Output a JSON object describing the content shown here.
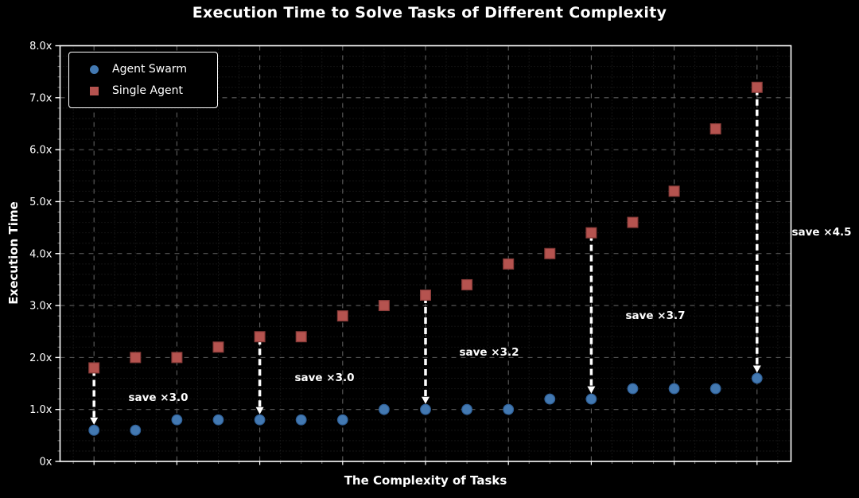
{
  "chart_data": {
    "type": "scatter",
    "title": "Execution Time to Solve Tasks of Different Complexity",
    "xlabel": "The Complexity of Tasks",
    "ylabel": "Execution Time",
    "ylim": [
      0,
      8
    ],
    "yticks": {
      "values": [
        0,
        1,
        2,
        3,
        4,
        5,
        6,
        7,
        8
      ],
      "labels": [
        "0x",
        "1.0x",
        "2.0x",
        "3.0x",
        "4.0x",
        "5.0x",
        "6.0x",
        "7.0x",
        "8.0x"
      ]
    },
    "x_point_count": 17,
    "grid": {
      "major_color": "#5f5f5f",
      "minor_color": "#262626"
    },
    "legend_position": "upper-left",
    "series": [
      {
        "name": "Agent Swarm",
        "marker": "circle",
        "color": "#4379b2",
        "edge_color": "#2f5f96",
        "values": [
          0.6,
          0.6,
          0.8,
          0.8,
          0.8,
          0.8,
          0.8,
          1.0,
          1.0,
          1.0,
          1.0,
          1.2,
          1.2,
          1.4,
          1.4,
          1.4,
          1.6
        ]
      },
      {
        "name": "Single Agent",
        "marker": "square",
        "color": "#b5534f",
        "edge_color": "#8a3c3a",
        "values": [
          1.8,
          2.0,
          2.0,
          2.2,
          2.4,
          2.4,
          2.8,
          3.0,
          3.2,
          3.4,
          3.8,
          4.0,
          4.4,
          4.6,
          5.2,
          6.4,
          7.2
        ]
      }
    ],
    "annotations": [
      {
        "index": 0,
        "label": "save ×3.0",
        "tx": 199,
        "ty": 500
      },
      {
        "index": 4,
        "label": "save ×3.0",
        "tx": 408,
        "ty": 475
      },
      {
        "index": 8,
        "label": "save ×3.2",
        "tx": 615,
        "ty": 443
      },
      {
        "index": 12,
        "label": "save ×3.7",
        "tx": 824,
        "ty": 397
      },
      {
        "index": 16,
        "label": "save ×4.5",
        "tx": 1033,
        "ty": 292
      }
    ],
    "arrow_color": "#ffffff",
    "axis_color": "#ffffff",
    "text_color": "#ffffff",
    "background_color": "#000000"
  }
}
